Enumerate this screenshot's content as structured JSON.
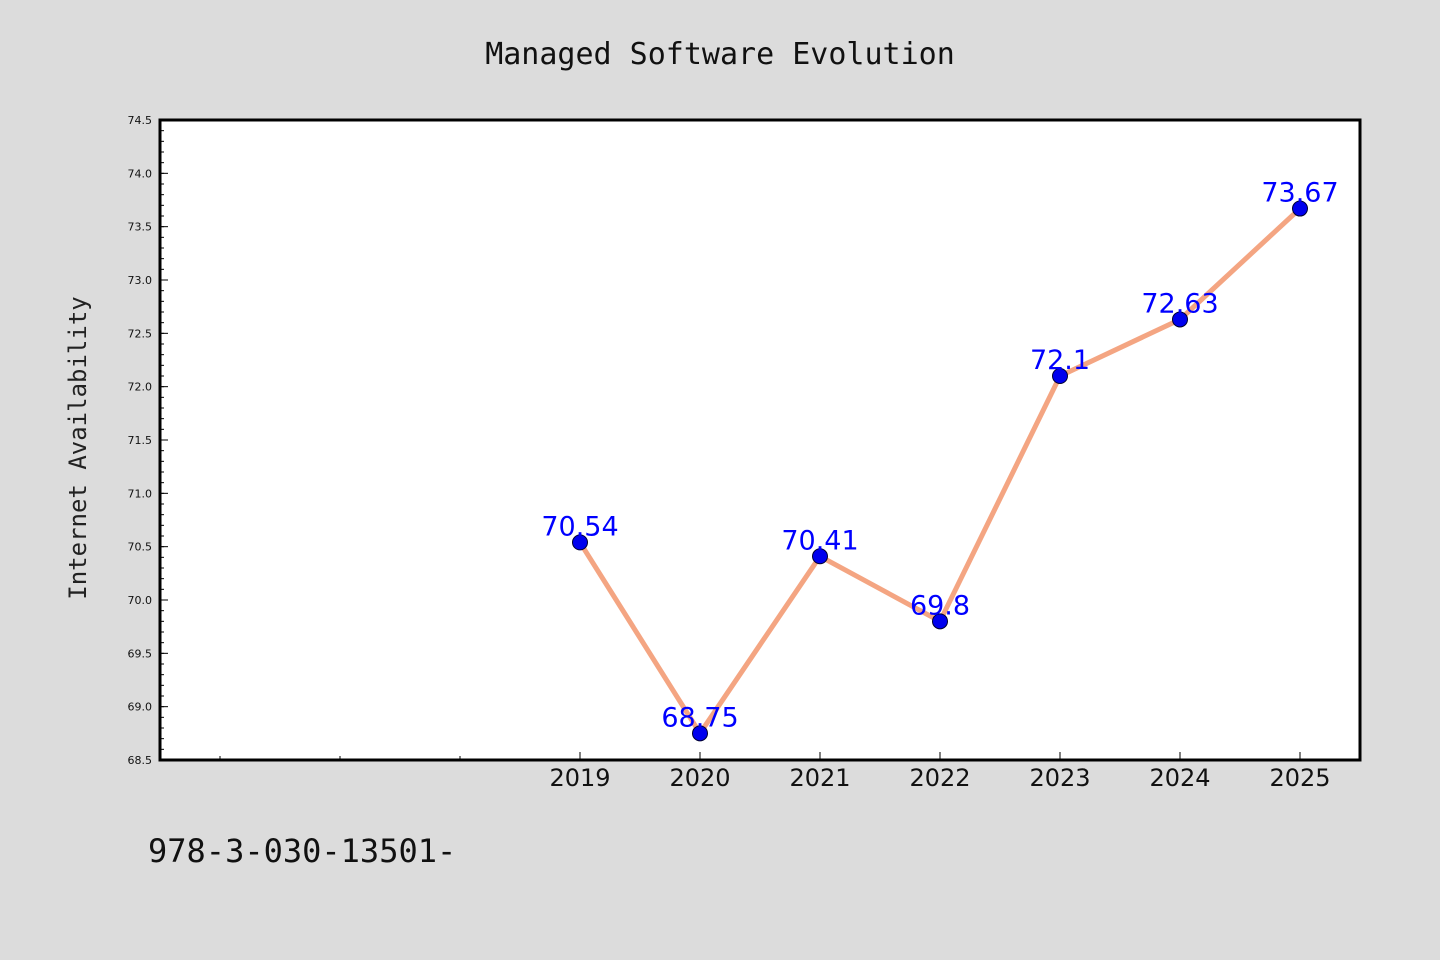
{
  "footer": {
    "code_text": "978-3-030-13501-"
  },
  "chart_data": {
    "type": "line",
    "title": "Managed Software Evolution",
    "xlabel": "",
    "ylabel": "Internet Availability",
    "x": [
      "2019",
      "2020",
      "2021",
      "2022",
      "2023",
      "2024",
      "2025"
    ],
    "x_positions": [
      2019,
      2020,
      2021,
      2022,
      2023,
      2024,
      2025
    ],
    "xlim": [
      2015.5,
      2025.5
    ],
    "series": [
      {
        "values": [
          70.54,
          68.75,
          70.41,
          69.8,
          72.1,
          72.63,
          73.67
        ],
        "data_labels": [
          "70.54",
          "68.75",
          "70.41",
          "69.8",
          "72.1",
          "72.63",
          "73.67"
        ]
      }
    ],
    "ylim": [
      68.5,
      74.5
    ],
    "y_ticks": [
      "68.5",
      "69.0",
      "69.5",
      "70.0",
      "70.5",
      "71.0",
      "71.5",
      "72.0",
      "72.5",
      "73.0",
      "73.5",
      "74.0",
      "74.5"
    ],
    "grid": false,
    "legend": "none",
    "colors": {
      "background": "#dcdcdc",
      "plot_background": "#ffffff",
      "line": "#f4a582",
      "marker": "#0000ee",
      "data_label": "#0000ff",
      "axis": "#000000"
    }
  }
}
